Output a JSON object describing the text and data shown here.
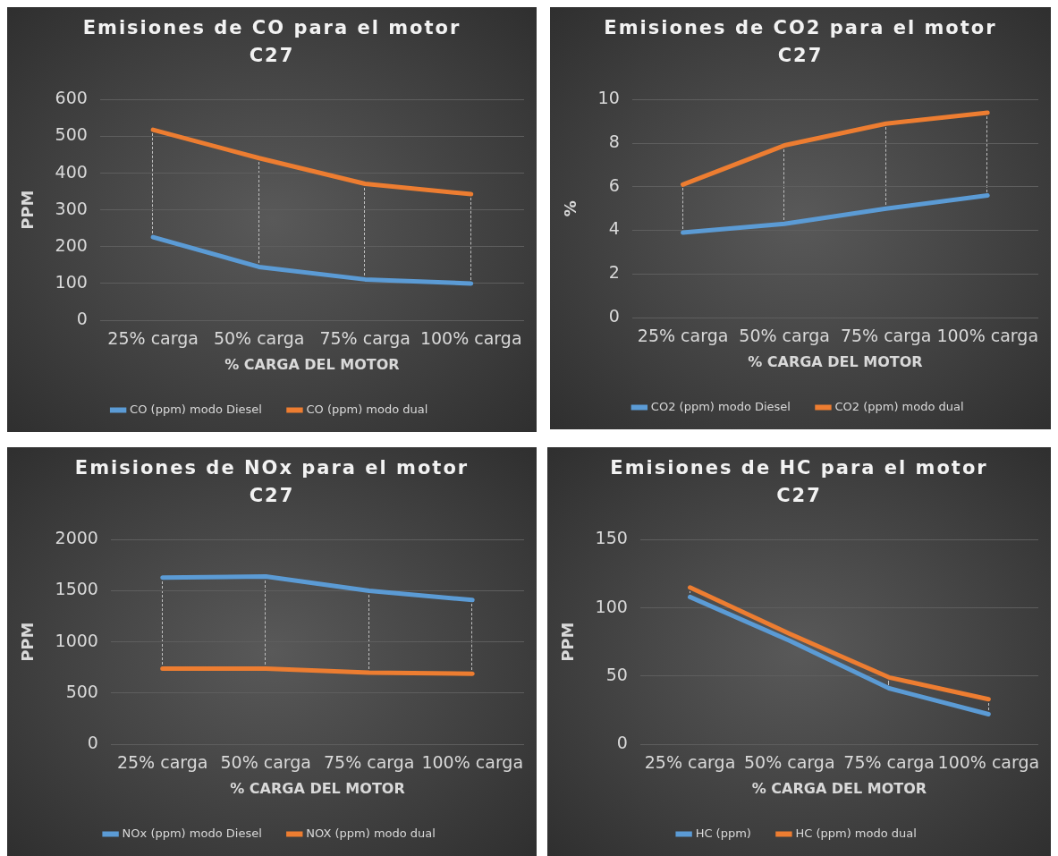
{
  "chart_data": [
    {
      "type": "line",
      "title": "Emisiones de CO para el motor C27",
      "xlabel": "% CARGA DEL MOTOR",
      "ylabel": "PPM",
      "categories": [
        "25% carga",
        "50% carga",
        "75% carga",
        "100% carga"
      ],
      "ylim": [
        0,
        600
      ],
      "yticks": [
        0,
        100,
        200,
        300,
        400,
        500,
        600
      ],
      "grid": "y",
      "legend": "bottom",
      "marker": "none",
      "line_style": "solid",
      "series": [
        {
          "name": "CO (ppm) modo Diesel",
          "color": "#5b9bd5",
          "values": [
            226,
            145,
            111,
            100
          ]
        },
        {
          "name": "CO (ppm) modo dual",
          "color": "#ed7d31",
          "values": [
            518,
            441,
            371,
            343
          ]
        }
      ]
    },
    {
      "type": "line",
      "title": "Emisiones de CO2 para el motor C27",
      "xlabel": "% CARGA DEL MOTOR",
      "ylabel": "%",
      "categories": [
        "25% carga",
        "50% carga",
        "75% carga",
        "100% carga"
      ],
      "ylim": [
        0,
        10
      ],
      "yticks": [
        0,
        2,
        4,
        6,
        8,
        10
      ],
      "grid": "y",
      "legend": "bottom",
      "marker": "none",
      "line_style": "solid",
      "series": [
        {
          "name": "CO2 (ppm) modo Diesel",
          "color": "#5b9bd5",
          "values": [
            3.9,
            4.3,
            5.0,
            5.6
          ]
        },
        {
          "name": "CO2 (ppm) modo dual",
          "color": "#ed7d31",
          "values": [
            6.1,
            7.9,
            8.9,
            9.4
          ]
        }
      ]
    },
    {
      "type": "line",
      "title": "Emisiones de NOx para el motor C27",
      "xlabel": "% CARGA DEL MOTOR",
      "ylabel": "PPM",
      "categories": [
        "25% carga",
        "50% carga",
        "75% carga",
        "100% carga"
      ],
      "ylim": [
        0,
        2000
      ],
      "yticks": [
        0,
        500,
        1000,
        1500,
        2000
      ],
      "grid": "y",
      "legend": "bottom",
      "marker": "none",
      "line_style": "solid",
      "series": [
        {
          "name": "NOx (ppm) modo Diesel",
          "color": "#5b9bd5",
          "values": [
            1630,
            1640,
            1500,
            1410
          ]
        },
        {
          "name": "NOX (ppm) modo dual",
          "color": "#ed7d31",
          "values": [
            740,
            740,
            700,
            690
          ]
        }
      ]
    },
    {
      "type": "line",
      "title": "Emisiones de HC para el motor C27",
      "xlabel": "% CARGA DEL MOTOR",
      "ylabel": "PPM",
      "categories": [
        "25% carga",
        "50% carga",
        "75% carga",
        "100% carga"
      ],
      "ylim": [
        0,
        150
      ],
      "yticks": [
        0,
        50,
        100,
        150
      ],
      "grid": "y",
      "legend": "bottom",
      "marker": "none",
      "line_style": "solid",
      "series": [
        {
          "name": "HC (ppm)",
          "color": "#5b9bd5",
          "values": [
            108,
            76,
            41,
            22
          ]
        },
        {
          "name": "HC (ppm) modo dual",
          "color": "#ed7d31",
          "values": [
            115,
            81,
            49,
            33
          ]
        }
      ]
    }
  ]
}
